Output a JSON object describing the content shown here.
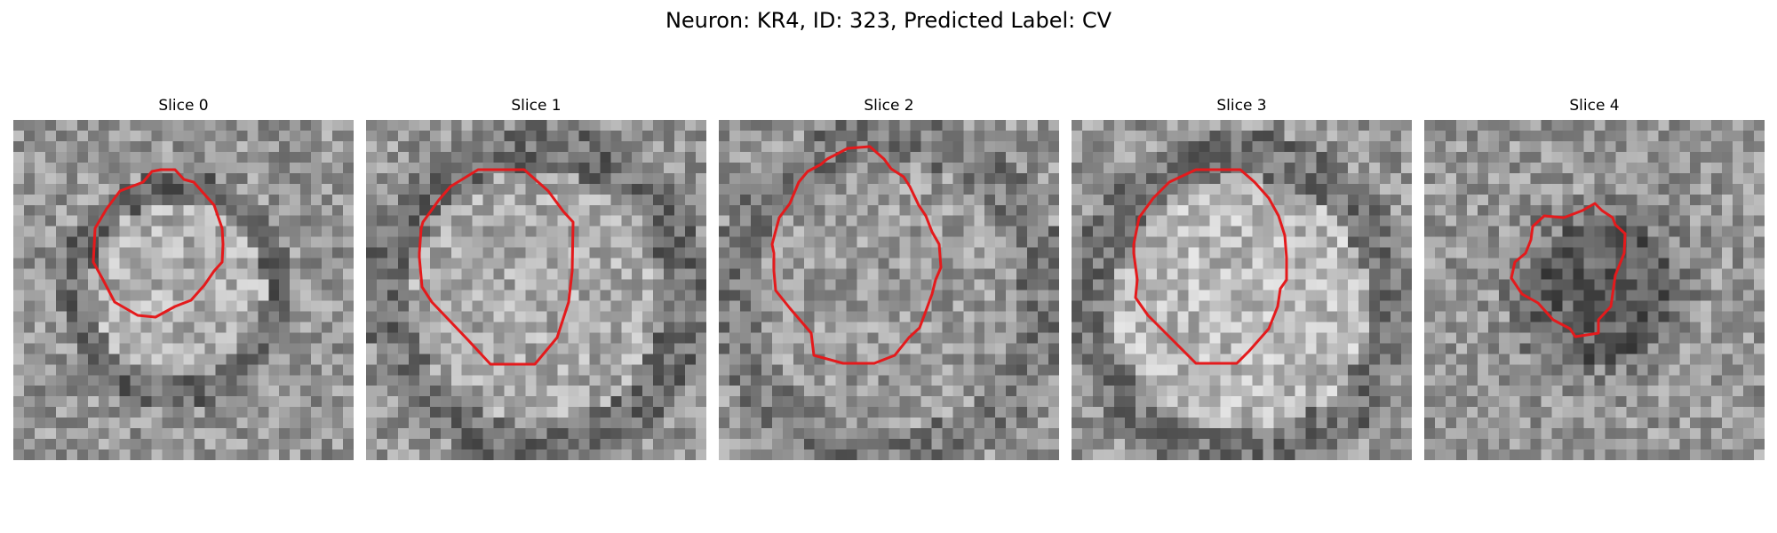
{
  "figure": {
    "title": "Neuron: KR4, ID: 323, Predicted Label: CV",
    "contour_color": "#e41a1c",
    "slices": [
      {
        "title": "Slice 0",
        "image_icon": "grayscale-micrograph-image",
        "contour": "red-segmentation-contour"
      },
      {
        "title": "Slice 1",
        "image_icon": "grayscale-micrograph-image",
        "contour": "red-segmentation-contour"
      },
      {
        "title": "Slice 2",
        "image_icon": "grayscale-micrograph-image",
        "contour": "red-segmentation-contour"
      },
      {
        "title": "Slice 3",
        "image_icon": "grayscale-micrograph-image",
        "contour": "red-segmentation-contour"
      },
      {
        "title": "Slice 4",
        "image_icon": "grayscale-micrograph-image",
        "contour": "red-segmentation-contour"
      }
    ]
  }
}
